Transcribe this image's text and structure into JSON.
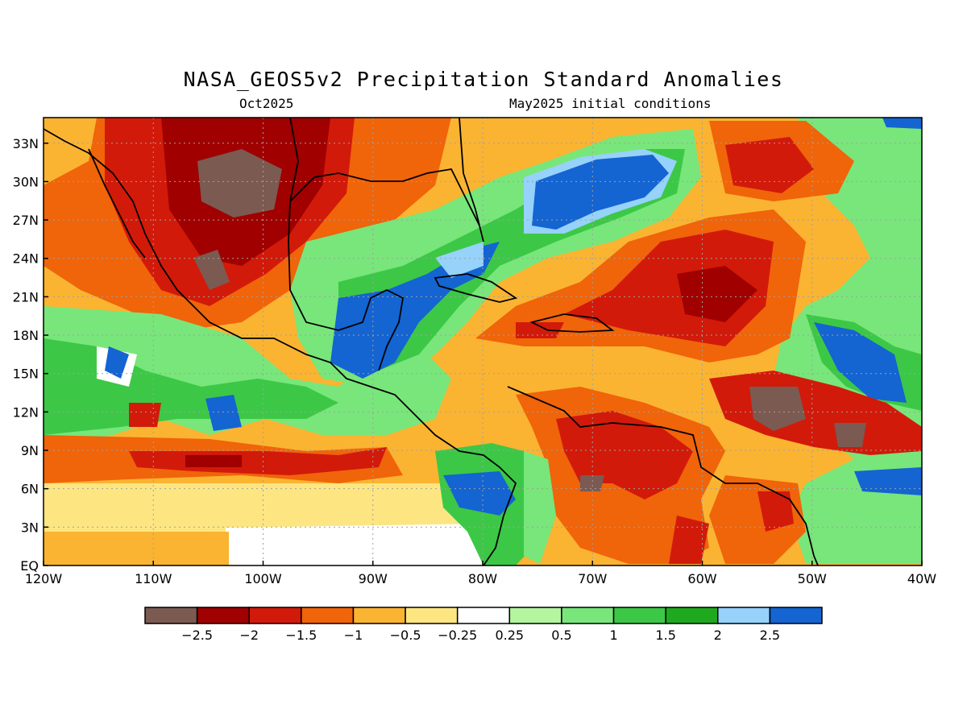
{
  "title": "NASA_GEOS5v2 Precipitation Standard Anomalies",
  "subtitle_left": "Oct2025",
  "subtitle_right": "May2025 initial conditions",
  "map": {
    "lon_range": [
      -120,
      -40
    ],
    "lat_range": [
      0,
      35
    ],
    "lat_ticks": [
      "EQ",
      "3N",
      "6N",
      "9N",
      "12N",
      "15N",
      "18N",
      "21N",
      "24N",
      "27N",
      "30N",
      "33N"
    ],
    "lon_ticks": [
      "120W",
      "110W",
      "100W",
      "90W",
      "80W",
      "70W",
      "60W",
      "50W",
      "40W"
    ],
    "gridlines": "dotted"
  },
  "colorbar": {
    "colors": [
      "#7b5a52",
      "#a00000",
      "#d21a0a",
      "#f0640a",
      "#fab432",
      "#fde682",
      "#ffffff",
      "#b4f5a0",
      "#78e67a",
      "#3cc846",
      "#1ea91e",
      "#96d2fa",
      "#1464d2"
    ],
    "labels": [
      "-2.5",
      "-2",
      "-1.5",
      "-1",
      "-0.5",
      "-0.25",
      "0.25",
      "0.5",
      "1",
      "1.5",
      "2",
      "2.5"
    ]
  }
}
